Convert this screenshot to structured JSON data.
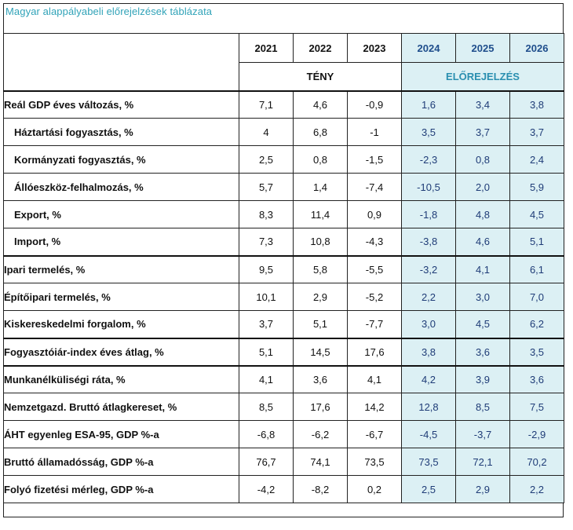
{
  "title": "Magyar alappályabeli előrejelzések táblázata",
  "years": [
    "2021",
    "2022",
    "2023",
    "2024",
    "2025",
    "2026"
  ],
  "groups": {
    "fact": "TÉNY",
    "forecast": "ELŐREJELZÉS"
  },
  "colors": {
    "title": "#31a3b8",
    "forecast_bg": "#dcf0f4",
    "forecast_text": "#1f3c77"
  },
  "rows": [
    {
      "label": "Reál GDP éves változás, %",
      "values": [
        "7,1",
        "4,6",
        "-0,9",
        "1,6",
        "3,4",
        "3,8"
      ]
    },
    {
      "label": "Háztartási fogyasztás, %",
      "values": [
        "4",
        "6,8",
        "-1",
        "3,5",
        "3,7",
        "3,7"
      ]
    },
    {
      "label": "Kormányzati fogyasztás, %",
      "values": [
        "2,5",
        "0,8",
        "-1,5",
        "-2,3",
        "0,8",
        "2,4"
      ]
    },
    {
      "label": "Állóeszköz-felhalmozás, %",
      "values": [
        "5,7",
        "1,4",
        "-7,4",
        "-10,5",
        "2,0",
        "5,9"
      ]
    },
    {
      "label": "Export, %",
      "values": [
        "8,3",
        "11,4",
        "0,9",
        "-1,8",
        "4,8",
        "4,5"
      ]
    },
    {
      "label": "Import, %",
      "values": [
        "7,3",
        "10,8",
        "-4,3",
        "-3,8",
        "4,6",
        "5,1"
      ]
    },
    {
      "label": "Ipari termelés, %",
      "values": [
        "9,5",
        "5,8",
        "-5,5",
        "-3,2",
        "4,1",
        "6,1"
      ]
    },
    {
      "label": "Építőipari termelés, %",
      "values": [
        "10,1",
        "2,9",
        "-5,2",
        "2,2",
        "3,0",
        "7,0"
      ]
    },
    {
      "label": "Kiskereskedelmi forgalom, %",
      "values": [
        "3,7",
        "5,1",
        "-7,7",
        "3,0",
        "4,5",
        "6,2"
      ]
    },
    {
      "label": "Fogyasztóiár-index éves átlag, %",
      "values": [
        "5,1",
        "14,5",
        "17,6",
        "3,8",
        "3,6",
        "3,5"
      ]
    },
    {
      "label": "Munkanélküliségi ráta, %",
      "values": [
        "4,1",
        "3,6",
        "4,1",
        "4,2",
        "3,9",
        "3,6"
      ]
    },
    {
      "label": "Nemzetgazd. Bruttó átlagkereset, %",
      "values": [
        "8,5",
        "17,6",
        "14,2",
        "12,8",
        "8,5",
        "7,5"
      ]
    },
    {
      "label": "ÁHT egyenleg ESA-95, GDP %-a",
      "values": [
        "-6,8",
        "-6,2",
        "-6,7",
        "-4,5",
        "-3,7",
        "-2,9"
      ]
    },
    {
      "label": "Bruttó államadósság, GDP %-a",
      "values": [
        "76,7",
        "74,1",
        "73,5",
        "73,5",
        "72,1",
        "70,2"
      ]
    },
    {
      "label": "Folyó fizetési mérleg, GDP %-a",
      "values": [
        "-4,2",
        "-8,2",
        "0,2",
        "2,5",
        "2,9",
        "2,2"
      ]
    }
  ]
}
